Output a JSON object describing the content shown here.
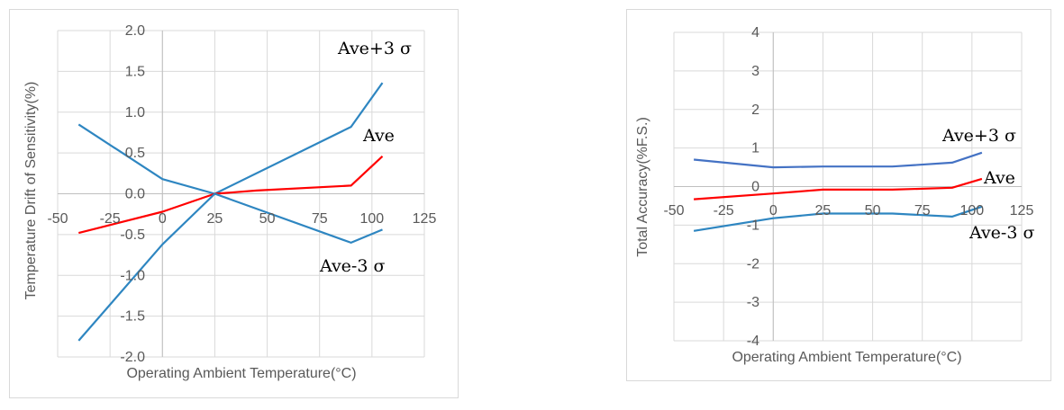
{
  "chart_data": [
    {
      "type": "line",
      "xlabel": "Operating Ambient Temperature(°C)",
      "ylabel": "Temperature Drift of Sensitivity(%)",
      "xlim": [
        -50,
        125
      ],
      "ylim": [
        -2.0,
        2.0
      ],
      "x_ticks": [
        "-50",
        "-25",
        "0",
        "25",
        "50",
        "75",
        "100",
        "125"
      ],
      "y_ticks": [
        "2.0",
        "1.5",
        "1.0",
        "0.5",
        "0.0",
        "-0.5",
        "-1.0",
        "-1.5",
        "-2.0"
      ],
      "grid": true,
      "series": [
        {
          "name": "Ave+3 σ",
          "color": "#2e86c1",
          "x": [
            -40,
            0,
            25,
            90,
            105
          ],
          "y": [
            0.85,
            0.18,
            0.0,
            0.82,
            1.36
          ]
        },
        {
          "name": "Ave",
          "color": "#ff0000",
          "x": [
            -40,
            0,
            25,
            45,
            90,
            105
          ],
          "y": [
            -0.48,
            -0.22,
            0.0,
            0.04,
            0.1,
            0.46
          ]
        },
        {
          "name": "Ave-3 σ",
          "color": "#2e86c1",
          "x": [
            -40,
            0,
            25,
            90,
            105
          ],
          "y": [
            -1.8,
            -0.62,
            0.0,
            -0.6,
            -0.44
          ]
        }
      ]
    },
    {
      "type": "line",
      "xlabel": "Operating Ambient Temperature(°C)",
      "ylabel": "Total Accuracy(%F.S.)",
      "xlim": [
        -50,
        125
      ],
      "ylim": [
        -4,
        4
      ],
      "x_ticks": [
        "-50",
        "-25",
        "0",
        "25",
        "50",
        "75",
        "100",
        "125"
      ],
      "y_ticks": [
        "4",
        "3",
        "2",
        "1",
        "0",
        "-1",
        "-2",
        "-3",
        "-4"
      ],
      "grid": true,
      "series": [
        {
          "name": "Ave+3 σ",
          "color": "#4472c4",
          "x": [
            -40,
            0,
            25,
            60,
            90,
            105
          ],
          "y": [
            0.7,
            0.5,
            0.52,
            0.52,
            0.62,
            0.88
          ]
        },
        {
          "name": "Ave",
          "color": "#ff0000",
          "x": [
            -40,
            0,
            25,
            60,
            90,
            105
          ],
          "y": [
            -0.33,
            -0.18,
            -0.08,
            -0.08,
            -0.03,
            0.2
          ]
        },
        {
          "name": "Ave-3 σ",
          "color": "#2e86c1",
          "x": [
            -40,
            0,
            25,
            60,
            90,
            105
          ],
          "y": [
            -1.15,
            -0.82,
            -0.7,
            -0.7,
            -0.78,
            -0.52
          ]
        }
      ]
    }
  ]
}
